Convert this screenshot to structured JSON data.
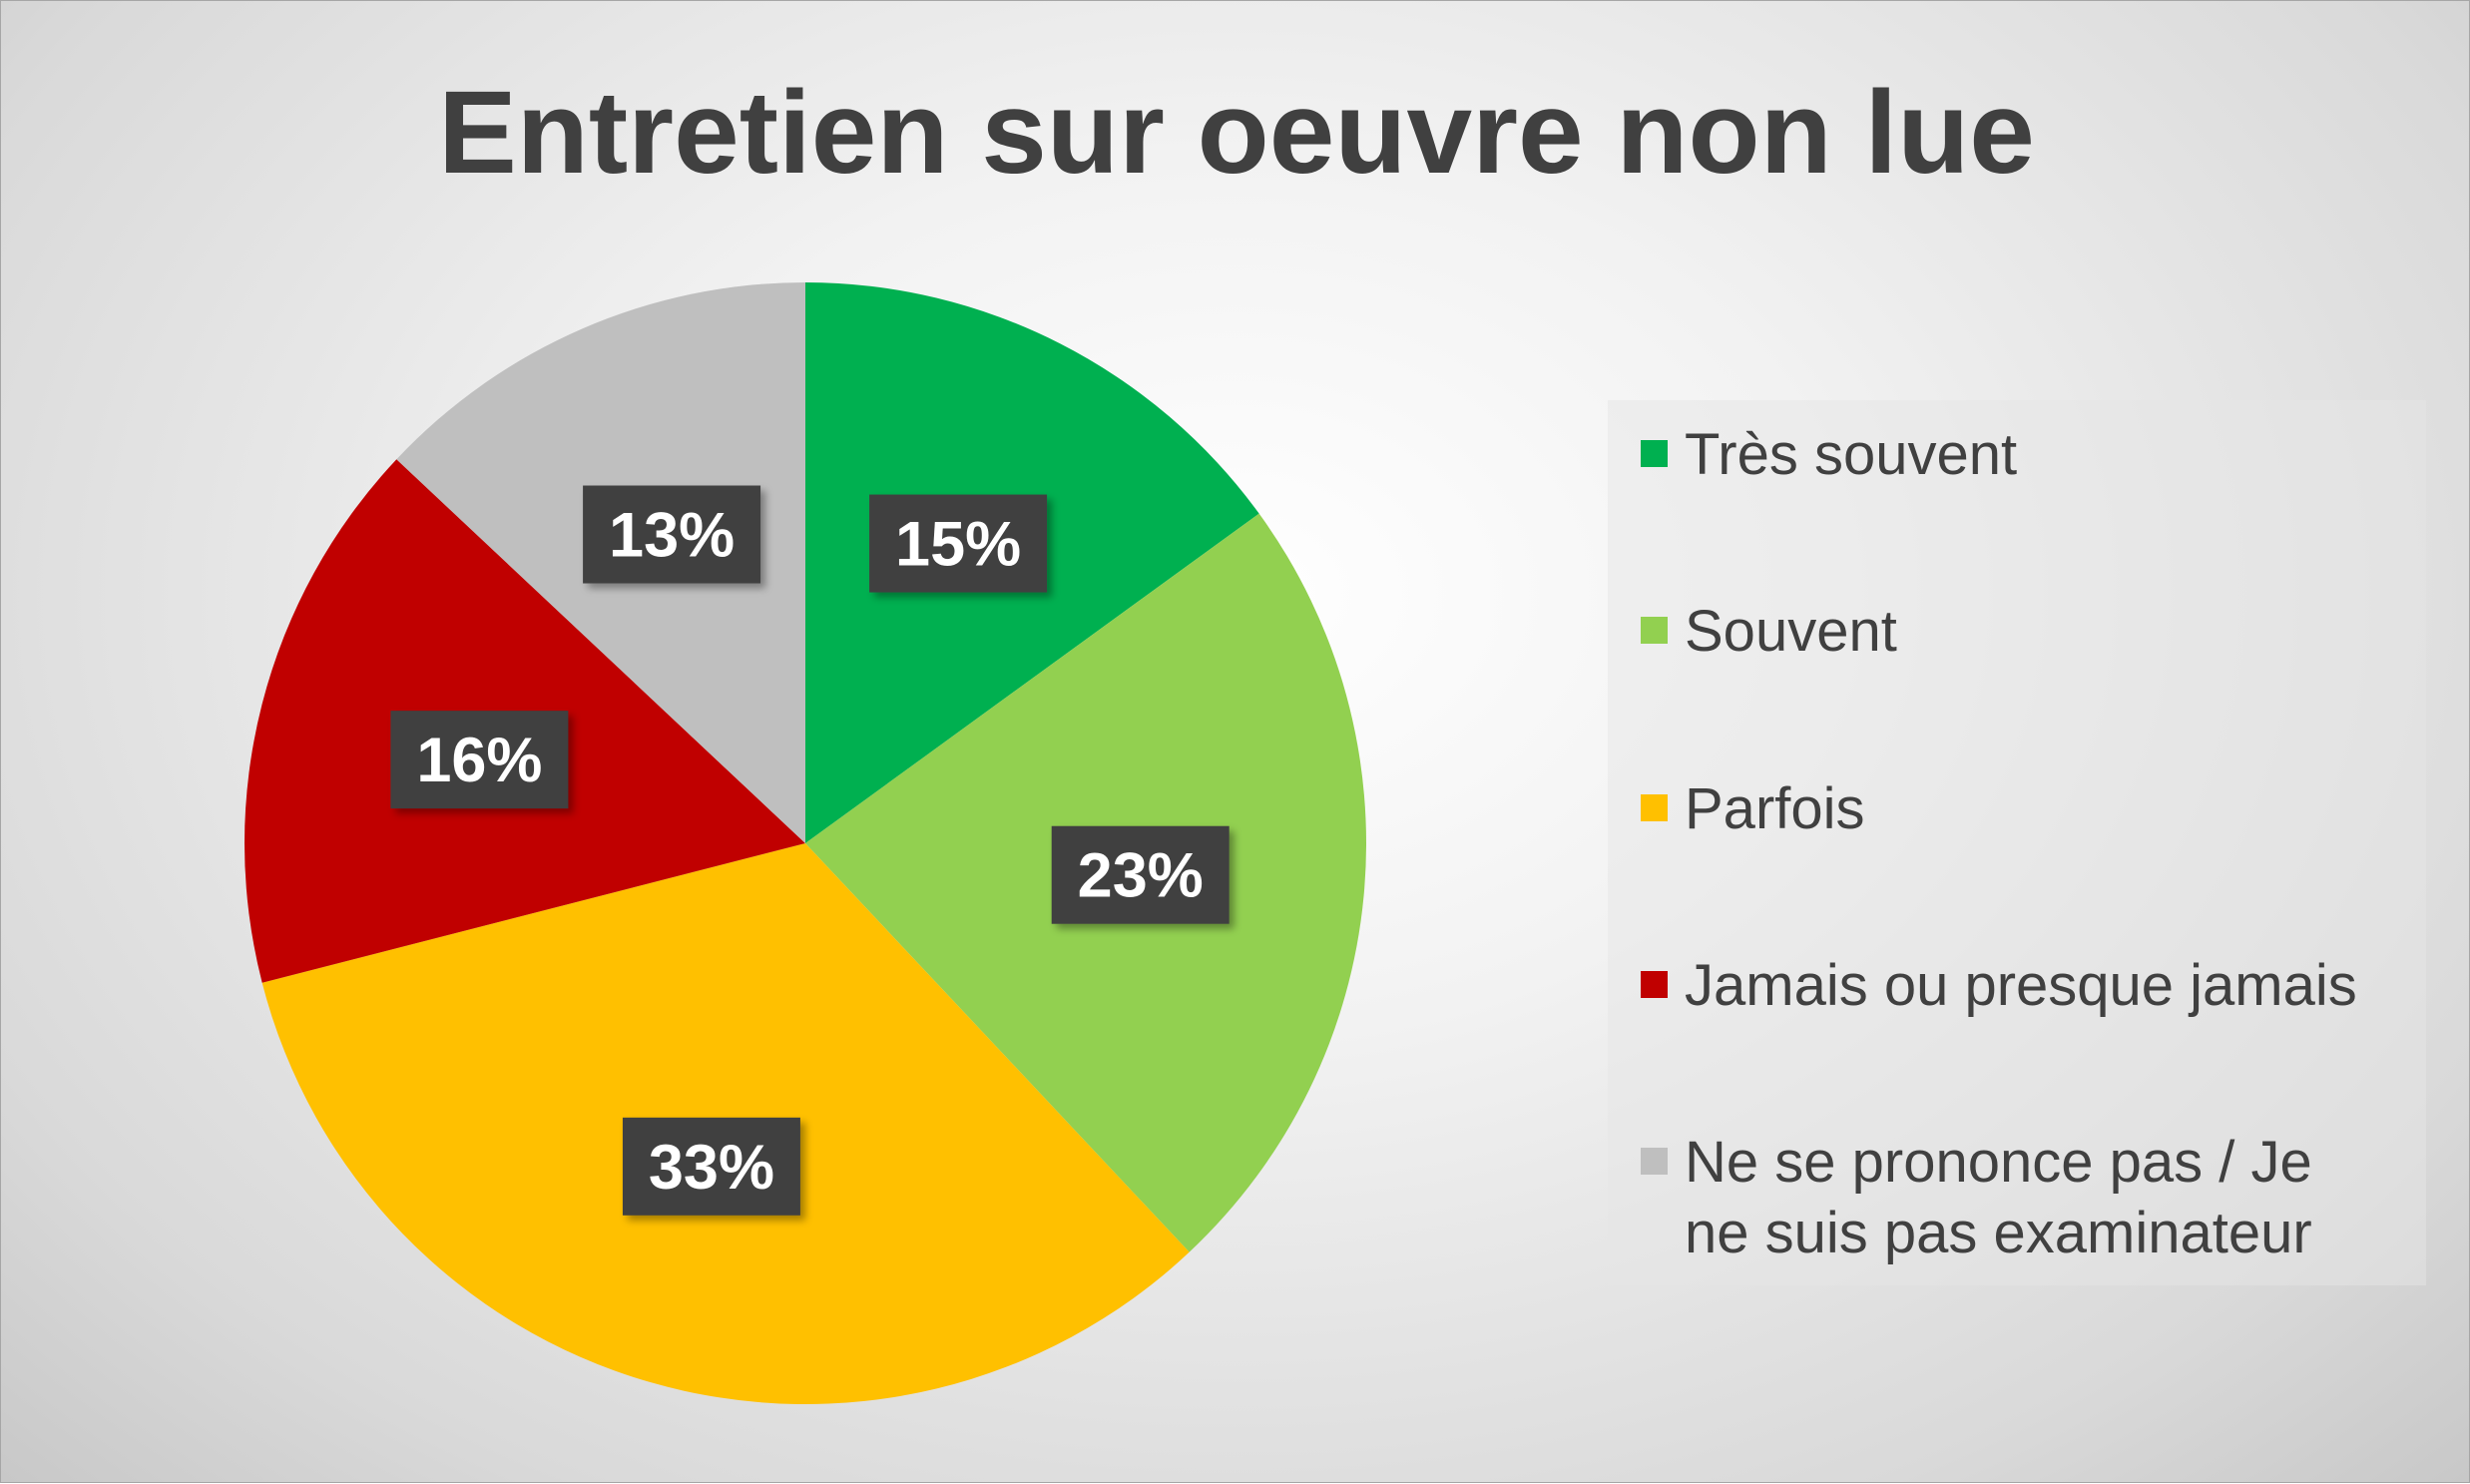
{
  "chart_data": {
    "type": "pie",
    "title": "Entretien sur oeuvre non lue",
    "start_angle_deg": 0,
    "direction": "clockwise",
    "legend_position": "right",
    "slices": [
      {
        "label": "Très souvent",
        "value": 15,
        "data_label": "15%",
        "color": "#00b050"
      },
      {
        "label": "Souvent",
        "value": 23,
        "data_label": "23%",
        "color": "#92d050"
      },
      {
        "label": "Parfois",
        "value": 33,
        "data_label": "33%",
        "color": "#ffc000"
      },
      {
        "label": "Jamais ou presque jamais",
        "value": 16,
        "data_label": "16%",
        "color": "#c00000"
      },
      {
        "label": "Ne se prononce pas / Je ne suis pas examinateur",
        "legend_lines": [
          "Ne se prononce pas / Je",
          "ne suis pas examinateur"
        ],
        "value": 13,
        "data_label": "13%",
        "color": "#bfbfbf"
      }
    ]
  }
}
